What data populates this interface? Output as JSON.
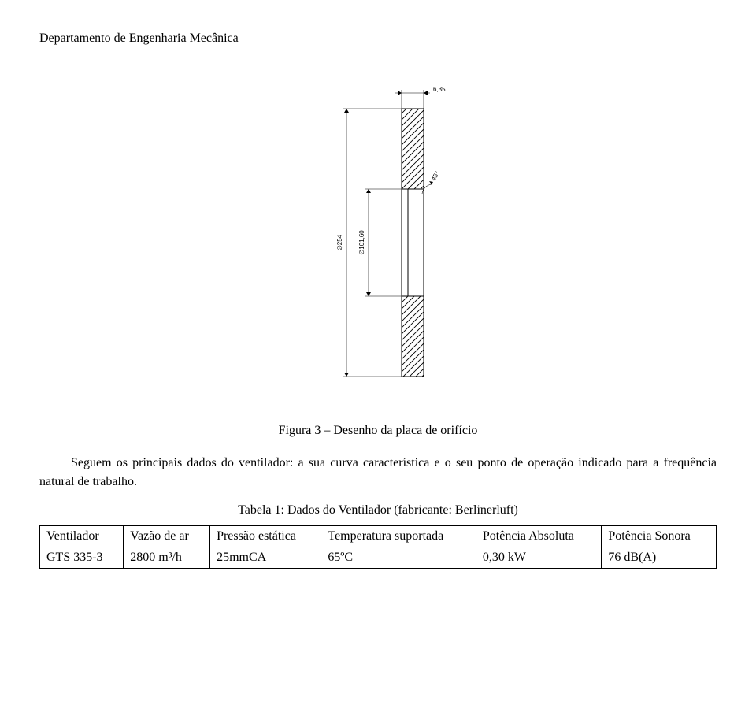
{
  "header": {
    "department": "Departamento de Engenharia Mecânica"
  },
  "diagram": {
    "top_dim_label": "6,35",
    "left_dim1_label": "∅254",
    "left_dim2_label": "∅101,60",
    "angle_label": "45°",
    "stroke_color": "#000000",
    "hatch_color": "#000000",
    "background": "#ffffff",
    "font_size": 8,
    "plate_width": 28,
    "plate_height": 340,
    "inner_gap_height": 136
  },
  "figure_caption": "Figura 3 – Desenho da placa de orifício",
  "paragraph": "Seguem os principais dados do ventilador: a sua curva característica e o seu ponto de operação indicado para a frequência natural de trabalho.",
  "table_caption": "Tabela 1: Dados do Ventilador (fabricante: Berlinerluft)",
  "table": {
    "headers": [
      "Ventilador",
      "Vazão de ar",
      "Pressão estática",
      "Temperatura suportada",
      "Potência Absoluta",
      "Potência Sonora"
    ],
    "rows": [
      [
        "GTS 335-3",
        "2800 m³/h",
        "25mmCA",
        "65ºC",
        "0,30 kW",
        "76 dB(A)"
      ]
    ]
  }
}
